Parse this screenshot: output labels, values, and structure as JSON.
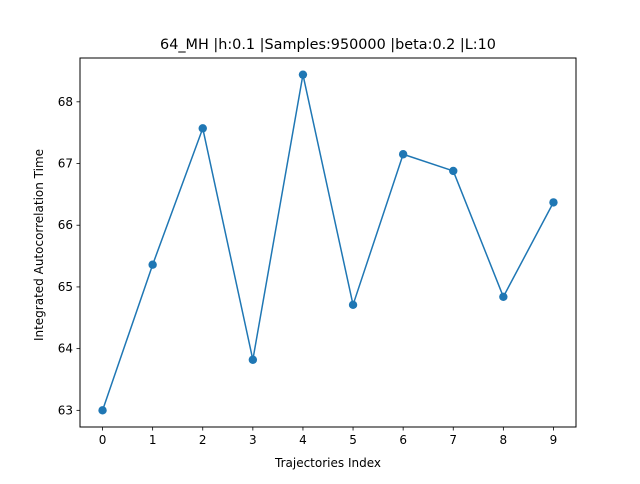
{
  "chart_data": {
    "type": "line",
    "title": "64_MH |h:0.1 |Samples:950000 |beta:0.2 |L:10",
    "xlabel": "Trajectories Index",
    "ylabel": "Integrated Autocorrelation Time",
    "x": [
      0,
      1,
      2,
      3,
      4,
      5,
      6,
      7,
      8,
      9
    ],
    "series": [
      {
        "values": [
          63.0,
          65.36,
          67.57,
          63.82,
          68.44,
          64.71,
          67.15,
          66.88,
          64.84,
          66.37
        ],
        "color": "#1f77b4",
        "marker": "circle"
      }
    ],
    "xticks": [
      "0",
      "1",
      "2",
      "3",
      "4",
      "5",
      "6",
      "7",
      "8",
      "9"
    ],
    "yticks": [
      "63",
      "64",
      "65",
      "66",
      "67",
      "68"
    ],
    "xlim": [
      -0.45,
      9.45
    ],
    "ylim": [
      62.73,
      68.71
    ],
    "grid": false,
    "legend": "none"
  }
}
